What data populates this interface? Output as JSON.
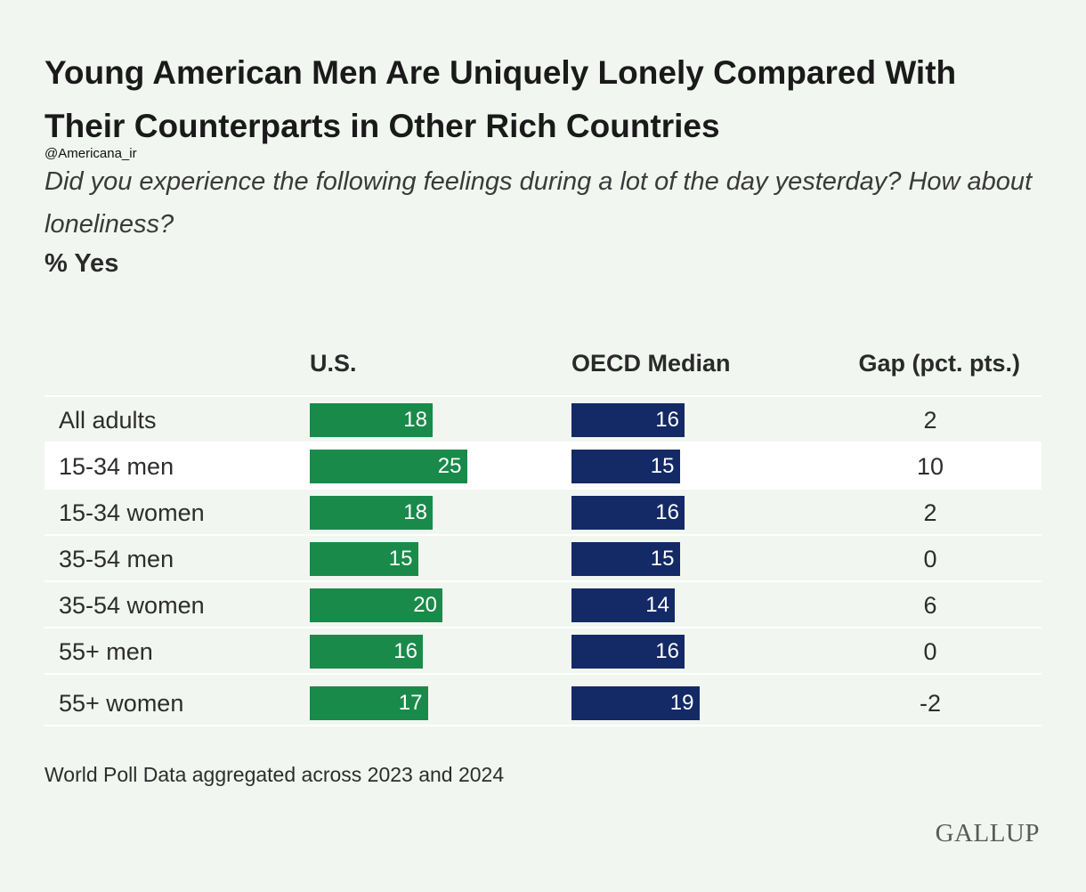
{
  "title": "Young American Men Are Uniquely Lonely Compared With Their Counterparts in Other Rich Countries",
  "handle": "@Americana_ir",
  "subtitle": "Did you experience the following feelings during a lot of the day yesterday? How about loneliness?",
  "unit": "% Yes",
  "note": "World Poll Data aggregated across 2023 and 2024",
  "logo": "GALLUP",
  "colors": {
    "us": "#1a8a4a",
    "oecd": "#132a66",
    "background": "#f1f6f0"
  },
  "chart_data": {
    "type": "bar",
    "orientation": "horizontal",
    "title": "Young American Men Are Uniquely Lonely Compared With Their Counterparts in Other Rich Countries",
    "columns": [
      "U.S.",
      "OECD Median",
      "Gap (pct. pts.)"
    ],
    "categories": [
      "All adults",
      "15-34 men",
      "15-34 women",
      "35-54 men",
      "35-54 women",
      "55+ men",
      "55+ women"
    ],
    "series": [
      {
        "name": "U.S.",
        "values": [
          18,
          25,
          18,
          15,
          20,
          16,
          17
        ]
      },
      {
        "name": "OECD Median",
        "values": [
          16,
          15,
          16,
          15,
          14,
          16,
          19
        ]
      }
    ],
    "gap": [
      2,
      10,
      2,
      0,
      6,
      0,
      -2
    ],
    "highlight_row": "15-34 men"
  }
}
